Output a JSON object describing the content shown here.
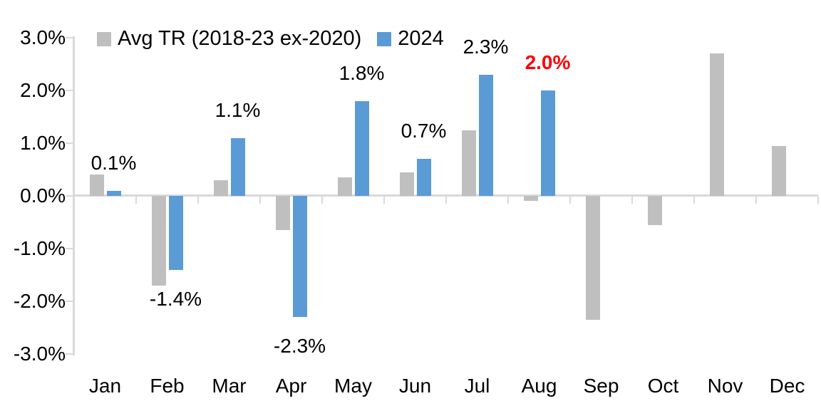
{
  "chart_data": {
    "type": "bar",
    "categories": [
      "Jan",
      "Feb",
      "Mar",
      "Apr",
      "May",
      "Jun",
      "Jul",
      "Aug",
      "Sep",
      "Oct",
      "Nov",
      "Dec"
    ],
    "series": [
      {
        "name": "Avg TR (2018-23 ex-2020)",
        "color": "#BFBFBF",
        "values": [
          0.4,
          -1.7,
          0.3,
          -0.65,
          0.35,
          0.45,
          1.25,
          -0.1,
          -2.35,
          -0.55,
          2.7,
          0.95
        ]
      },
      {
        "name": "2024",
        "color": "#5B9BD5",
        "values": [
          0.1,
          -1.4,
          1.1,
          -2.3,
          1.8,
          0.7,
          2.3,
          2.0,
          null,
          null,
          null,
          null
        ]
      }
    ],
    "data_labels": [
      {
        "month_index": 0,
        "text": "0.1%",
        "color": "#000000",
        "bold": false
      },
      {
        "month_index": 1,
        "text": "-1.4%",
        "color": "#000000",
        "bold": false
      },
      {
        "month_index": 2,
        "text": "1.1%",
        "color": "#000000",
        "bold": false
      },
      {
        "month_index": 3,
        "text": "-2.3%",
        "color": "#000000",
        "bold": false
      },
      {
        "month_index": 4,
        "text": "1.8%",
        "color": "#000000",
        "bold": false
      },
      {
        "month_index": 5,
        "text": "0.7%",
        "color": "#000000",
        "bold": false
      },
      {
        "month_index": 6,
        "text": "2.3%",
        "color": "#000000",
        "bold": false
      },
      {
        "month_index": 7,
        "text": "2.0%",
        "color": "#FF0000",
        "bold": true
      }
    ],
    "y_axis": {
      "tick_labels": [
        "3.0%",
        "2.0%",
        "1.0%",
        "0.0%",
        "-1.0%",
        "-2.0%",
        "-3.0%"
      ],
      "tick_values": [
        3,
        2,
        1,
        0,
        -1,
        -2,
        -3
      ],
      "min": -3,
      "max": 3,
      "unit": "%"
    },
    "legend": [
      {
        "label": "Avg TR (2018-23 ex-2020)",
        "color": "#BFBFBF"
      },
      {
        "label": "2024",
        "color": "#5B9BD5"
      }
    ],
    "grid": false,
    "legend_position": "top",
    "axis_color": "#D9D9D9"
  }
}
